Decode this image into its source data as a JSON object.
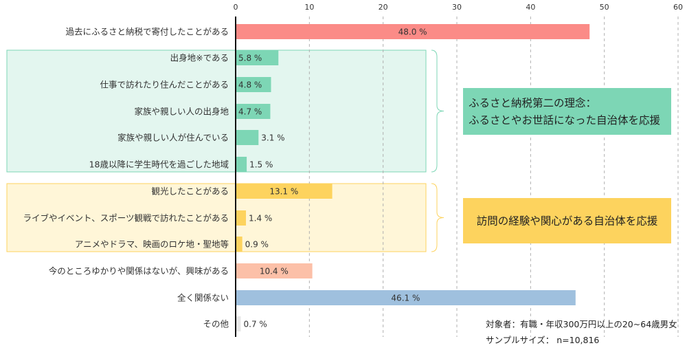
{
  "chart_data": {
    "type": "bar",
    "orientation": "horizontal",
    "xlim": [
      0,
      60
    ],
    "x_ticks": [
      "0",
      "10",
      "20",
      "30",
      "40",
      "50",
      "60"
    ],
    "value_suffix": " %",
    "categories": [
      "過去にふるさと納税で寄付したことがある",
      "出身地※である",
      "仕事で訪れたり住んだことがある",
      "家族や親しい人の出身地",
      "家族や親しい人が住んでいる",
      "18歳以降に学生時代を過ごした地域",
      "観光したことがある",
      "ライブやイベント、スポーツ観戦で訪れたことがある",
      "アニメやドラマ、映画のロケ地・聖地等",
      "今のところゆかりや関係はないが、興味がある",
      "全く関係ない",
      "その他"
    ],
    "values": [
      48.0,
      5.8,
      4.8,
      4.7,
      3.1,
      1.5,
      13.1,
      1.4,
      0.9,
      10.4,
      46.1,
      0.7
    ],
    "value_labels": [
      "48.0 %",
      "5.8 %",
      "4.8 %",
      "4.7 %",
      "3.1 %",
      "1.5 %",
      "13.1 %",
      "1.4 %",
      "0.9 %",
      "10.4 %",
      "46.1 %",
      "0.7 %"
    ],
    "bar_colors": [
      "#fb8b87",
      "#7dd6b5",
      "#7dd6b5",
      "#7dd6b5",
      "#7dd6b5",
      "#7dd6b5",
      "#fdd35e",
      "#fdd35e",
      "#fdd35e",
      "#fcc0a8",
      "#9fc0de",
      "#e8e8e8"
    ],
    "groups": [
      {
        "members": [
          1,
          2,
          3,
          4,
          5
        ],
        "fill": "#e3f6ef",
        "border": "#7dd6b5",
        "callout_lines": [
          "ふるさと納税第二の理念：",
          "ふるさとやお世話になった自治体を応援"
        ],
        "callout_fill": "#7dd6b5"
      },
      {
        "members": [
          6,
          7,
          8
        ],
        "fill": "#fff6d8",
        "border": "#fdd35e",
        "callout_lines": [
          "訪問の経験や関心がある自治体を応援"
        ],
        "callout_fill": "#fdd35e"
      }
    ],
    "notes": [
      "対象者：有職・年収300万円以上の20~64歳男女",
      "サンプルサイズ： n=10,816"
    ],
    "grid": "vertical-dashed"
  }
}
